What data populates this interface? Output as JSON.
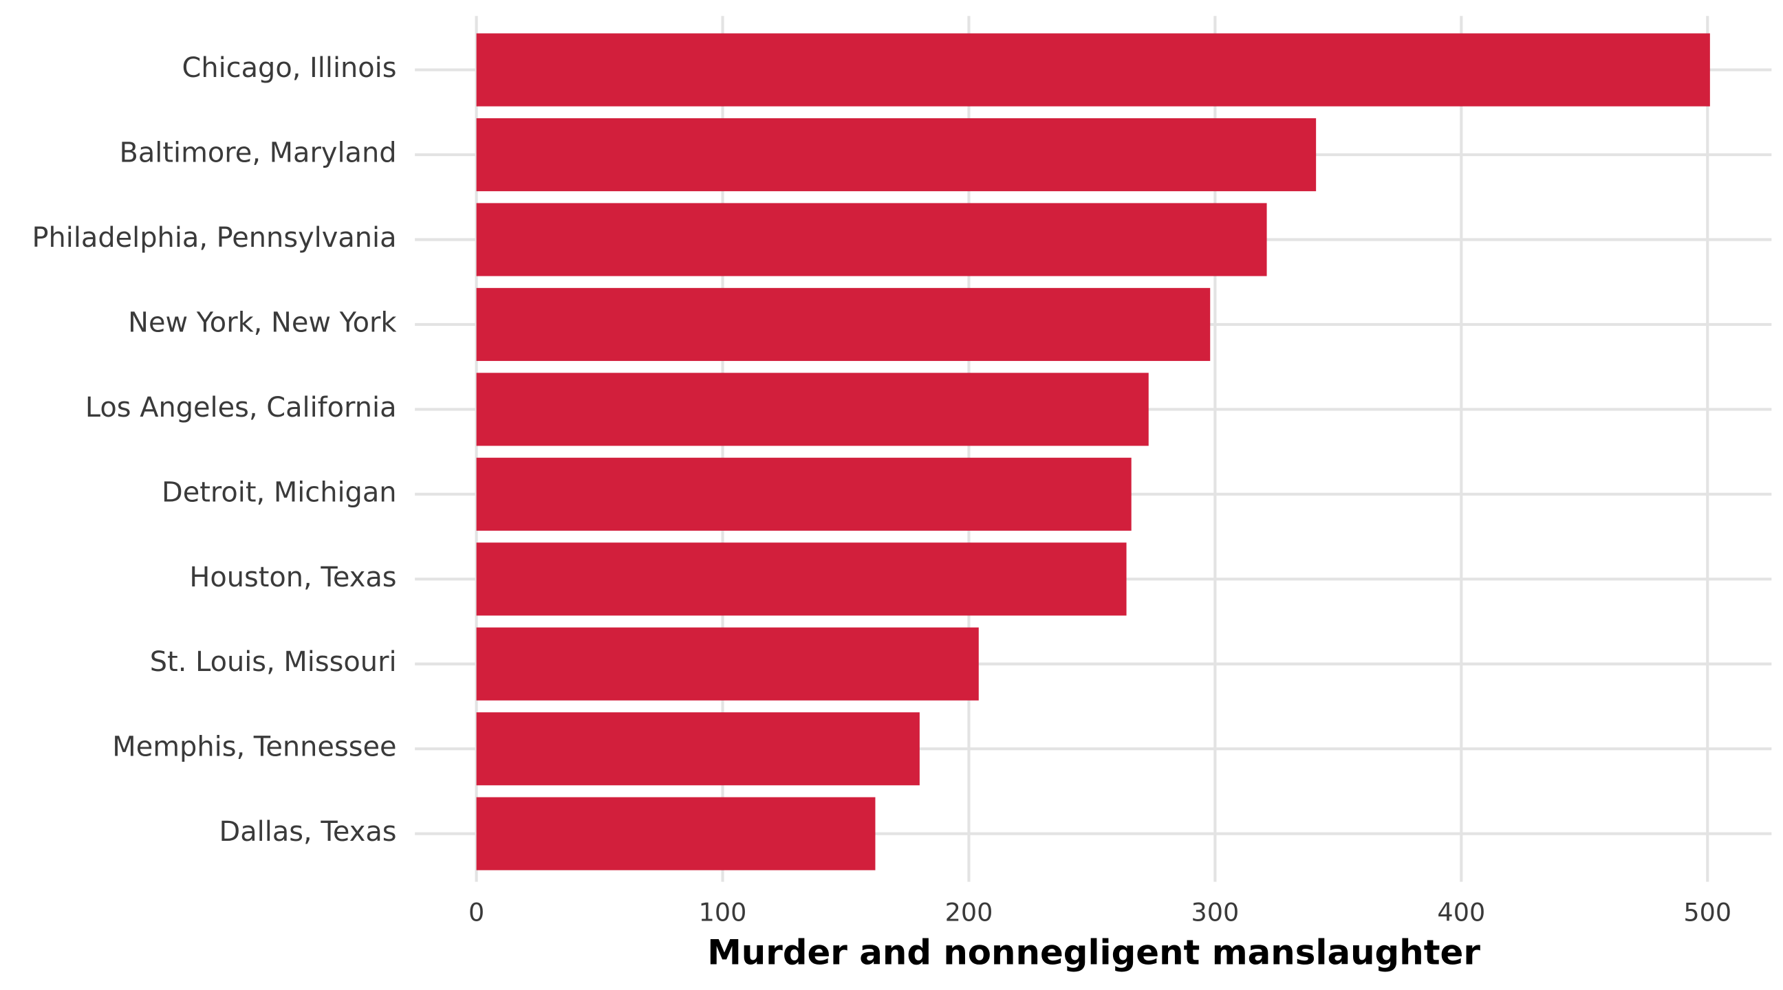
{
  "chart_data": {
    "type": "bar",
    "orientation": "horizontal",
    "x_label": "Murder and nonnegligent manslaughter",
    "categories": [
      "Chicago, Illinois",
      "Baltimore, Maryland",
      "Philadelphia, Pennsylvania",
      "New York, New York",
      "Los Angeles, California",
      "Detroit, Michigan",
      "Houston, Texas",
      "St. Louis, Missouri",
      "Memphis, Tennessee",
      "Dallas, Texas"
    ],
    "values": [
      501,
      341,
      321,
      298,
      273,
      266,
      264,
      204,
      180,
      162
    ],
    "color": "#d21f3c",
    "xlim": [
      -25,
      526
    ],
    "xticks": [
      0,
      100,
      200,
      300,
      400,
      500
    ],
    "grid": true
  }
}
